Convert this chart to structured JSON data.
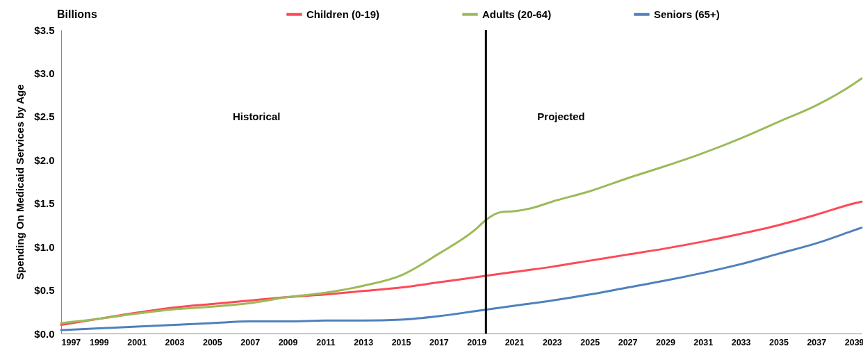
{
  "chart_data": {
    "type": "line",
    "title": "Billions",
    "ylabel": "Spending On Medicaid Services by Age",
    "annotations": [
      "Historical",
      "Projected"
    ],
    "xlim": [
      1997,
      2039.4
    ],
    "xticks": [
      1997,
      1999,
      2001,
      2003,
      2005,
      2007,
      2009,
      2011,
      2013,
      2015,
      2017,
      2019,
      2021,
      2023,
      2025,
      2027,
      2029,
      2031,
      2033,
      2035,
      2037,
      2039
    ],
    "ylim": [
      0,
      3.5
    ],
    "yticks": [
      {
        "value": 0,
        "label": "$0.0"
      },
      {
        "value": 0.5,
        "label": "$0.5"
      },
      {
        "value": 1,
        "label": "$1.0"
      },
      {
        "value": 1.5,
        "label": "$1.5"
      },
      {
        "value": 2,
        "label": "$2.0"
      },
      {
        "value": 2.5,
        "label": "$2.5"
      },
      {
        "value": 3,
        "label": "$3.0"
      },
      {
        "value": 3.5,
        "label": "$3.5"
      }
    ],
    "ref_lines": [
      {
        "axis": "x",
        "value": 2019.5,
        "color": "#000000"
      }
    ],
    "grid": false,
    "legend": "top",
    "marker": "none",
    "line_style": "solid",
    "series": [
      {
        "name": "Children (0-19)",
        "color": "#fe4a56",
        "x": [
          1997,
          1999,
          2001,
          2003,
          2005,
          2007,
          2009,
          2011,
          2013,
          2015,
          2017,
          2019,
          2021,
          2023,
          2025,
          2027,
          2029,
          2031,
          2033,
          2035,
          2037,
          2039,
          2039.4
        ],
        "values": [
          0.1,
          0.17,
          0.24,
          0.3,
          0.34,
          0.38,
          0.42,
          0.45,
          0.49,
          0.53,
          0.59,
          0.65,
          0.71,
          0.77,
          0.84,
          0.91,
          0.98,
          1.06,
          1.15,
          1.25,
          1.37,
          1.5,
          1.52
        ]
      },
      {
        "name": "Adults (20-64)",
        "color": "#9bbb59",
        "x": [
          1997,
          1999,
          2001,
          2003,
          2005,
          2007,
          2009,
          2011,
          2013,
          2015,
          2017,
          2019,
          2019.5,
          2020.3,
          2021,
          2022,
          2023,
          2025,
          2027,
          2029,
          2031,
          2033,
          2035,
          2037,
          2039,
          2039.4
        ],
        "values": [
          0.12,
          0.17,
          0.23,
          0.28,
          0.31,
          0.35,
          0.42,
          0.47,
          0.55,
          0.67,
          0.92,
          1.21,
          1.31,
          1.4,
          1.41,
          1.45,
          1.52,
          1.64,
          1.79,
          1.93,
          2.08,
          2.25,
          2.44,
          2.63,
          2.88,
          2.94
        ]
      },
      {
        "name": "Seniors (65+)",
        "color": "#4f81bd",
        "x": [
          1997,
          1999,
          2001,
          2003,
          2005,
          2007,
          2009,
          2011,
          2013,
          2015,
          2017,
          2019,
          2021,
          2023,
          2025,
          2027,
          2029,
          2031,
          2033,
          2035,
          2037,
          2039,
          2039.4
        ],
        "values": [
          0.04,
          0.06,
          0.08,
          0.1,
          0.12,
          0.14,
          0.14,
          0.15,
          0.15,
          0.16,
          0.2,
          0.26,
          0.32,
          0.38,
          0.45,
          0.53,
          0.61,
          0.7,
          0.8,
          0.92,
          1.04,
          1.19,
          1.22
        ]
      }
    ]
  }
}
